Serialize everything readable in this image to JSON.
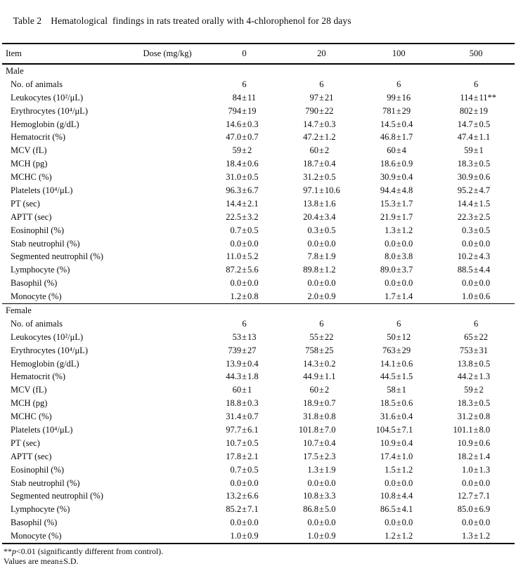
{
  "title": {
    "label": "Table 2",
    "text": "Hematological  findings in rats treated orally with 4-chlorophenol for 28 days"
  },
  "header": {
    "item": "Item",
    "dose": "Dose (mg/kg)",
    "doses": [
      "0",
      "20",
      "100",
      "500"
    ]
  },
  "table": {
    "sections": [
      {
        "name": "Male",
        "rows": [
          {
            "label": "No. of animals",
            "values": [
              "6",
              "6",
              "6",
              "6"
            ]
          },
          {
            "label": "Leukocytes (10²/μL)",
            "values": [
              "84±11",
              "97±21",
              "99±16",
              "114±11**"
            ]
          },
          {
            "label": "Erythrocytes (10⁴/μL)",
            "values": [
              "794±19",
              "790±22",
              "781±29",
              "802±19"
            ]
          },
          {
            "label": "Hemoglobin (g/dL)",
            "values": [
              "14.6±0.3",
              "14.7±0.3",
              "14.5±0.4",
              "14.7±0.5"
            ]
          },
          {
            "label": "Hematocrit (%)",
            "values": [
              "47.0±0.7",
              "47.2±1.2",
              "46.8±1.7",
              "47.4±1.1"
            ]
          },
          {
            "label": "MCV (fL)",
            "values": [
              "59±2",
              "60±2",
              "60±4",
              "59±1"
            ]
          },
          {
            "label": "MCH (pg)",
            "values": [
              "18.4±0.6",
              "18.7±0.4",
              "18.6±0.9",
              "18.3±0.5"
            ]
          },
          {
            "label": "MCHC (%)",
            "values": [
              "31.0±0.5",
              "31.2±0.5",
              "30.9±0.4",
              "30.9±0.6"
            ]
          },
          {
            "label": "Platelets (10⁴/μL)",
            "values": [
              "96.3±6.7",
              "97.1±10.6",
              "94.4±4.8",
              "95.2±4.7"
            ]
          },
          {
            "label": "PT (sec)",
            "values": [
              "14.4±2.1",
              "13.8±1.6",
              "15.3±1.7",
              "14.4±1.5"
            ]
          },
          {
            "label": "APTT (sec)",
            "values": [
              "22.5±3.2",
              "20.4±3.4",
              "21.9±1.7",
              "22.3±2.5"
            ]
          },
          {
            "label": "Eosinophil (%)",
            "values": [
              "0.7±0.5",
              "0.3±0.5",
              "1.3±1.2",
              "0.3±0.5"
            ]
          },
          {
            "label": "Stab neutrophil (%)",
            "values": [
              "0.0±0.0",
              "0.0±0.0",
              "0.0±0.0",
              "0.0±0.0"
            ]
          },
          {
            "label": "Segmented neutrophil (%)",
            "values": [
              "11.0±5.2",
              "7.8±1.9",
              "8.0±3.8",
              "10.2±4.3"
            ]
          },
          {
            "label": "Lymphocyte (%)",
            "values": [
              "87.2±5.6",
              "89.8±1.2",
              "89.0±3.7",
              "88.5±4.4"
            ]
          },
          {
            "label": "Basophil (%)",
            "values": [
              "0.0±0.0",
              "0.0±0.0",
              "0.0±0.0",
              "0.0±0.0"
            ]
          },
          {
            "label": "Monocyte (%)",
            "values": [
              "1.2±0.8",
              "2.0±0.9",
              "1.7±1.4",
              "1.0±0.6"
            ]
          }
        ]
      },
      {
        "name": "Female",
        "rows": [
          {
            "label": "No. of animals",
            "values": [
              "6",
              "6",
              "6",
              "6"
            ]
          },
          {
            "label": "Leukocytes (10²/μL)",
            "values": [
              "53±13",
              "55±22",
              "50±12",
              "65±22"
            ]
          },
          {
            "label": "Erythrocytes (10⁴/μL)",
            "values": [
              "739±27",
              "758±25",
              "763±29",
              "753±31"
            ]
          },
          {
            "label": "Hemoglobin (g/dL)",
            "values": [
              "13.9±0.4",
              "14.3±0.2",
              "14.1±0.6",
              "13.8±0.5"
            ]
          },
          {
            "label": "Hematocrit (%)",
            "values": [
              "44.3±1.8",
              "44.9±1.1",
              "44.5±1.5",
              "44.2±1.3"
            ]
          },
          {
            "label": "MCV (fL)",
            "values": [
              "60±1",
              "60±2",
              "58±1",
              "59±2"
            ]
          },
          {
            "label": "MCH (pg)",
            "values": [
              "18.8±0.3",
              "18.9±0.7",
              "18.5±0.6",
              "18.3±0.5"
            ]
          },
          {
            "label": "MCHC (%)",
            "values": [
              "31.4±0.7",
              "31.8±0.8",
              "31.6±0.4",
              "31.2±0.8"
            ]
          },
          {
            "label": "Platelets (10⁴/μL)",
            "values": [
              "97.7±6.1",
              "101.8±7.0",
              "104.5±7.1",
              "101.1±8.0"
            ]
          },
          {
            "label": "PT (sec)",
            "values": [
              "10.7±0.5",
              "10.7±0.4",
              "10.9±0.4",
              "10.9±0.6"
            ]
          },
          {
            "label": "APTT (sec)",
            "values": [
              "17.8±2.1",
              "17.5±2.3",
              "17.4±1.0",
              "18.2±1.4"
            ]
          },
          {
            "label": "Eosinophil (%)",
            "values": [
              "0.7±0.5",
              "1.3±1.9",
              "1.5±1.2",
              "1.0±1.3"
            ]
          },
          {
            "label": "Stab neutrophil (%)",
            "values": [
              "0.0±0.0",
              "0.0±0.0",
              "0.0±0.0",
              "0.0±0.0"
            ]
          },
          {
            "label": "Segmented neutrophil (%)",
            "values": [
              "13.2±6.6",
              "10.8±3.3",
              "10.8±4.4",
              "12.7±7.1"
            ]
          },
          {
            "label": "Lymphocyte (%)",
            "values": [
              "85.2±7.1",
              "86.8±5.0",
              "86.5±4.1",
              "85.0±6.9"
            ]
          },
          {
            "label": "Basophil (%)",
            "values": [
              "0.0±0.0",
              "0.0±0.0",
              "0.0±0.0",
              "0.0±0.0"
            ]
          },
          {
            "label": "Monocyte (%)",
            "values": [
              "1.0±0.9",
              "1.0±0.9",
              "1.2±1.2",
              "1.3±1.2"
            ]
          }
        ]
      }
    ]
  },
  "footnotes": {
    "line1_stars": "**",
    "line1_p": "p",
    "line1_rest": "<0.01 (significantly different from control).",
    "line2": "Values are mean±S.D."
  }
}
